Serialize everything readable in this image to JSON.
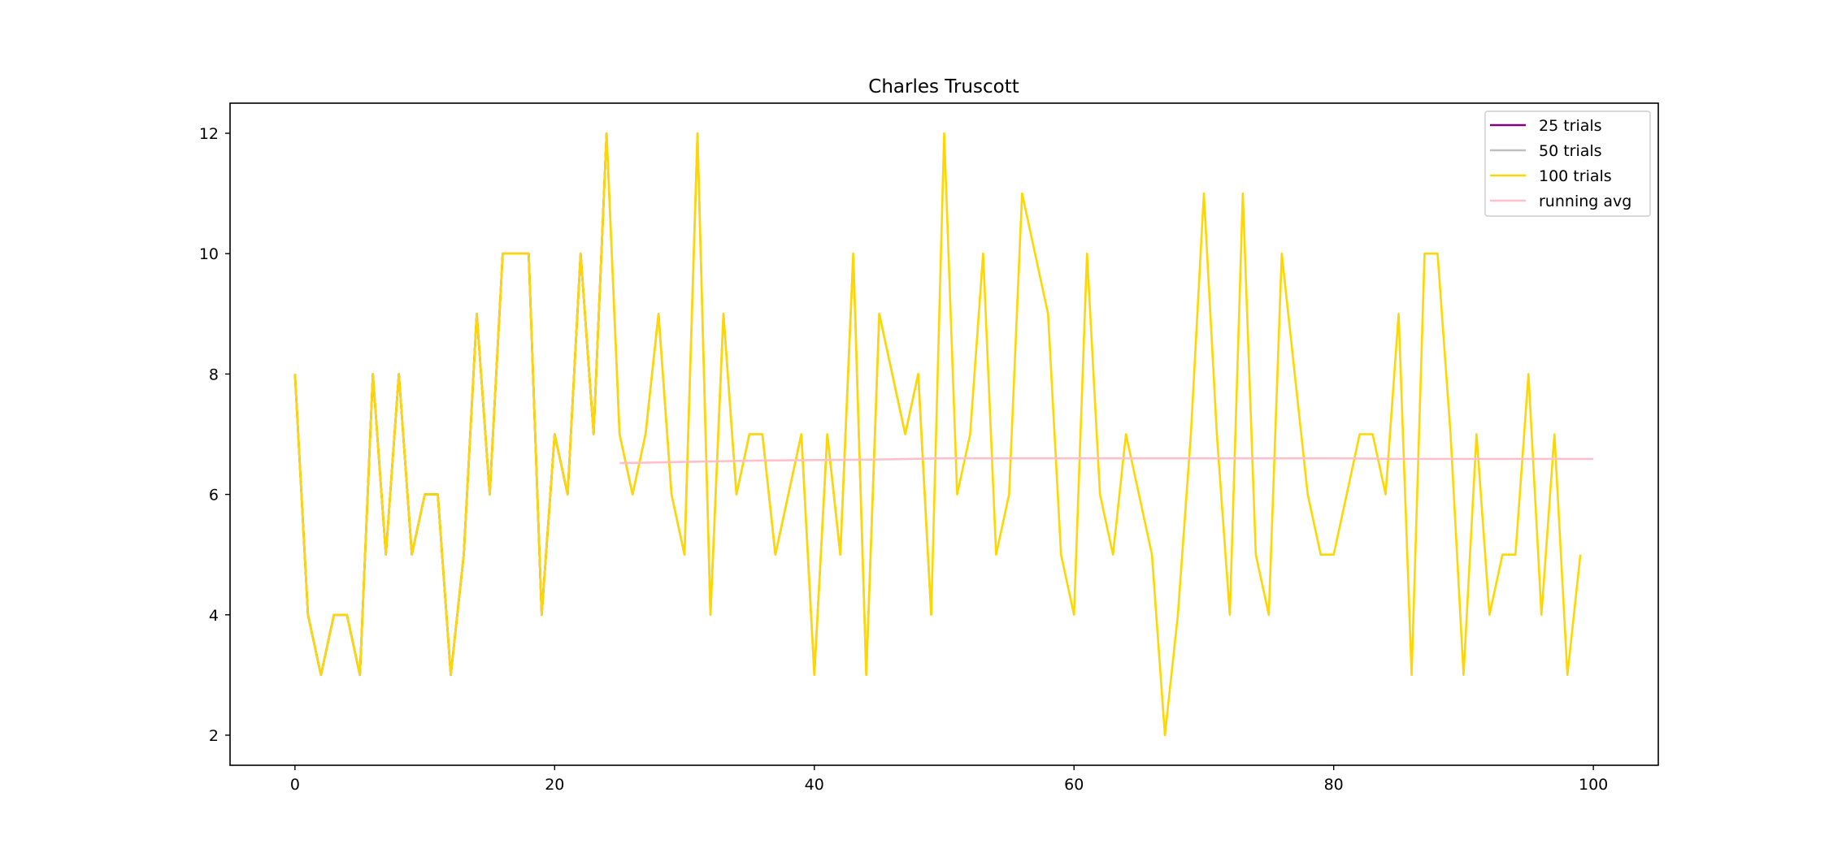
{
  "chart_data": {
    "type": "line",
    "title": "Charles Truscott",
    "xlabel": "",
    "ylabel": "",
    "xlim": [
      -5,
      105
    ],
    "ylim": [
      1.5,
      12.5
    ],
    "xticks": [
      0,
      20,
      40,
      60,
      80,
      100
    ],
    "yticks": [
      2,
      4,
      6,
      8,
      10,
      12
    ],
    "grid": false,
    "legend_position": "top-right",
    "series": [
      {
        "name": "25 trials",
        "color": "#800080",
        "x_start": 0,
        "values": [
          8,
          4,
          3,
          4,
          4,
          3,
          8,
          5,
          8,
          5,
          6,
          6,
          3,
          5,
          9,
          6,
          10,
          10,
          10,
          4,
          7,
          6,
          10,
          7,
          12
        ]
      },
      {
        "name": "50 trials",
        "color": "#c0c0c0",
        "x_start": 0,
        "values": [
          8,
          4,
          3,
          4,
          4,
          3,
          8,
          5,
          8,
          5,
          6,
          6,
          3,
          5,
          9,
          6,
          10,
          10,
          10,
          4,
          7,
          6,
          10,
          7,
          12,
          7,
          6,
          7,
          9,
          6,
          5,
          12,
          4,
          9,
          6,
          7,
          7,
          5,
          6,
          7,
          3,
          7,
          5,
          10,
          3,
          9,
          8,
          7,
          8,
          4
        ]
      },
      {
        "name": "100 trials",
        "color": "#ffd700",
        "x_start": 0,
        "values": [
          8,
          4,
          3,
          4,
          4,
          3,
          8,
          5,
          8,
          5,
          6,
          6,
          3,
          5,
          9,
          6,
          10,
          10,
          10,
          4,
          7,
          6,
          10,
          7,
          12,
          7,
          6,
          7,
          9,
          6,
          5,
          12,
          4,
          9,
          6,
          7,
          7,
          5,
          6,
          7,
          3,
          7,
          5,
          10,
          3,
          9,
          8,
          7,
          8,
          4,
          12,
          6,
          7,
          10,
          5,
          6,
          11,
          10,
          9,
          5,
          4,
          10,
          6,
          5,
          7,
          6,
          5,
          2,
          4,
          7,
          11,
          7,
          4,
          11,
          5,
          4,
          10,
          8,
          6,
          5,
          5,
          6,
          7,
          7,
          6,
          9,
          3,
          10,
          10,
          7,
          3,
          7,
          4,
          5,
          5,
          8,
          4,
          7,
          3,
          5
        ]
      },
      {
        "name": "running avg",
        "color": "#ffc0cb",
        "x": [
          25,
          30,
          35,
          40,
          45,
          50,
          55,
          60,
          65,
          70,
          75,
          80,
          85,
          90,
          95,
          100
        ],
        "values": [
          6.52,
          6.54,
          6.56,
          6.57,
          6.58,
          6.6,
          6.6,
          6.6,
          6.6,
          6.6,
          6.6,
          6.6,
          6.59,
          6.59,
          6.59,
          6.59
        ]
      }
    ]
  }
}
